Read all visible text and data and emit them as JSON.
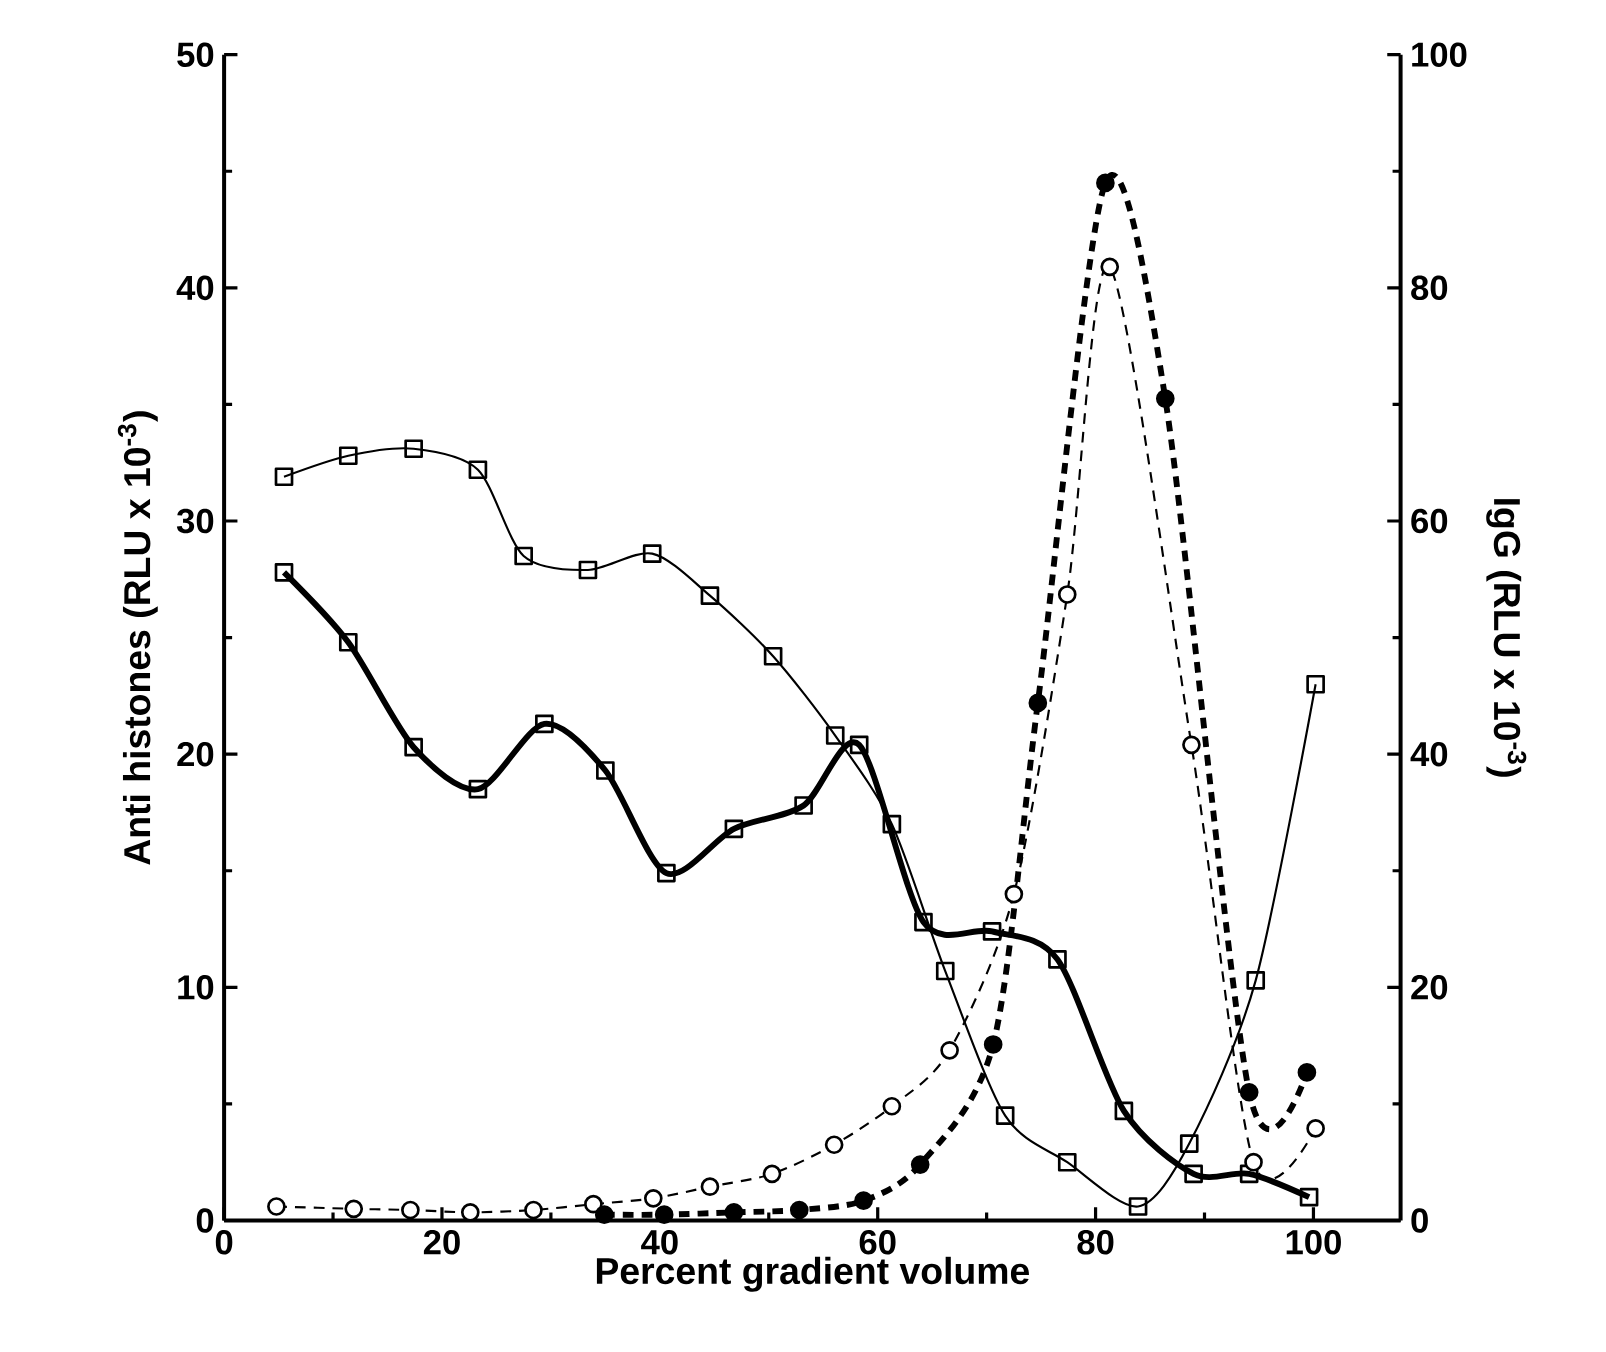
{
  "chart_data": {
    "type": "line",
    "xlabel": "Percent gradient volume",
    "ylabel": "Anti histones (RLU x 10$^{-3}$)",
    "y2label": "IgG (RLU x 10$^{-3}$)",
    "xlim": [
      0,
      108
    ],
    "xticks": [
      0,
      20,
      40,
      60,
      80,
      100
    ],
    "ylim": [
      0,
      50
    ],
    "yticks": [
      0,
      10,
      20,
      30,
      40,
      50
    ],
    "y2lim": [
      0,
      100
    ],
    "y2ticks": [
      0,
      20,
      40,
      60,
      80,
      100
    ],
    "series": [
      {
        "color": "#000000",
        "marker": "square",
        "line_style": "solid",
        "x": [
          5.5,
          11.4,
          17.4,
          23.3,
          27.5,
          33.4,
          39.3,
          44.6,
          50.4,
          56.1,
          61.3,
          66.2,
          71.7,
          77.4,
          83.9,
          88.6,
          94.7,
          100.2
        ],
        "values": [
          31.9,
          32.8,
          33.1,
          32.2,
          28.5,
          27.9,
          28.6,
          26.8,
          24.2,
          20.8,
          17.0,
          10.7,
          4.5,
          2.5,
          0.6,
          3.3,
          10.3,
          23.0
        ]
      },
      {
        "color": "#000000",
        "marker": "square",
        "line_style": "solid",
        "x": [
          5.5,
          11.4,
          17.4,
          23.3,
          29.4,
          35.0,
          40.6,
          46.8,
          53.2,
          58.3,
          64.2,
          70.5,
          76.5,
          82.6,
          89.0,
          94.1,
          99.6
        ],
        "values": [
          27.8,
          24.8,
          20.3,
          18.5,
          21.3,
          19.3,
          14.9,
          16.8,
          17.8,
          20.4,
          12.8,
          12.4,
          11.2,
          4.7,
          2.0,
          2.0,
          1.0
        ]
      },
      {
        "color": "#000000",
        "marker": "circle",
        "line_style": "dashed",
        "axis": "y2",
        "x": [
          4.8,
          11.9,
          17.1,
          22.6,
          28.4,
          33.9,
          39.4,
          44.6,
          50.3,
          56.0,
          61.3,
          66.6,
          72.5,
          77.4,
          81.3,
          88.8,
          94.5,
          100.2
        ],
        "values": [
          1.2,
          1.0,
          0.9,
          0.7,
          0.9,
          1.4,
          1.9,
          2.9,
          4.0,
          6.5,
          9.8,
          14.6,
          28.0,
          53.7,
          81.8,
          40.8,
          5.0,
          7.9
        ]
      },
      {
        "color": "#000000",
        "marker": "circle",
        "line_style": "dashed",
        "axis": "y2",
        "x": [
          34.9,
          40.4,
          46.8,
          52.8,
          58.7,
          63.9,
          70.6,
          74.7,
          80.9,
          86.4,
          94.1,
          99.4
        ],
        "values": [
          0.5,
          0.5,
          0.7,
          0.9,
          1.7,
          4.8,
          15.1,
          44.4,
          89.0,
          70.5,
          11.0,
          12.7
        ]
      }
    ]
  }
}
